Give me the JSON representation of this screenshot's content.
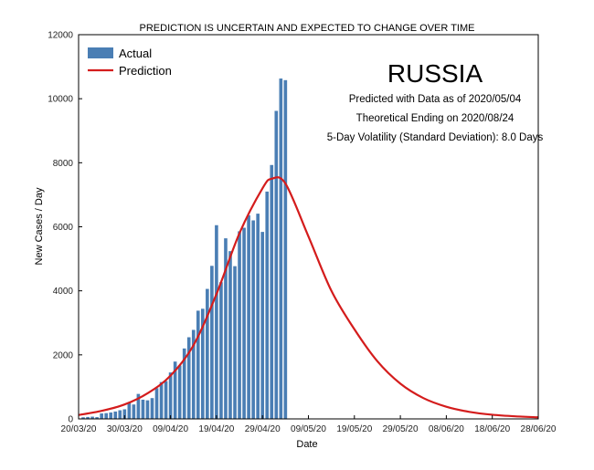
{
  "chart_data": {
    "type": "bar",
    "title": "PREDICTION IS UNCERTAIN AND EXPECTED TO CHANGE OVER TIME",
    "xlabel": "Date",
    "ylabel": "New Cases / Day",
    "ylim": [
      0,
      12000
    ],
    "yticks": [
      0,
      2000,
      4000,
      6000,
      8000,
      10000,
      12000
    ],
    "xticks": [
      "20/03/20",
      "30/03/20",
      "09/04/20",
      "19/04/20",
      "29/04/20",
      "09/05/20",
      "19/05/20",
      "29/05/20",
      "08/06/20",
      "18/06/20",
      "28/06/20"
    ],
    "x_start": "2020-03-20",
    "x_end": "2020-06-28",
    "annotations": {
      "country": "RUSSIA",
      "lines": [
        "Predicted with Data as of 2020/05/04",
        "Theoretical Ending on 2020/08/24",
        "5-Day Volatility (Standard Deviation): 8.0 Days"
      ]
    },
    "legend": {
      "placement": "top-left",
      "entries": [
        "Actual",
        "Prediction"
      ]
    },
    "colors": {
      "actual": "#4a7eb4",
      "prediction": "#d41c1c"
    },
    "series": [
      {
        "name": "Actual",
        "type": "bar",
        "dates": [
          "2020-03-21",
          "2020-03-22",
          "2020-03-23",
          "2020-03-24",
          "2020-03-25",
          "2020-03-26",
          "2020-03-27",
          "2020-03-28",
          "2020-03-29",
          "2020-03-30",
          "2020-03-31",
          "2020-04-01",
          "2020-04-02",
          "2020-04-03",
          "2020-04-04",
          "2020-04-05",
          "2020-04-06",
          "2020-04-07",
          "2020-04-08",
          "2020-04-09",
          "2020-04-10",
          "2020-04-11",
          "2020-04-12",
          "2020-04-13",
          "2020-04-14",
          "2020-04-15",
          "2020-04-16",
          "2020-04-17",
          "2020-04-18",
          "2020-04-19",
          "2020-04-20",
          "2020-04-21",
          "2020-04-22",
          "2020-04-23",
          "2020-04-24",
          "2020-04-25",
          "2020-04-26",
          "2020-04-27",
          "2020-04-28",
          "2020-04-29",
          "2020-04-30",
          "2020-05-01",
          "2020-05-02",
          "2020-05-03",
          "2020-05-04"
        ],
        "values": [
          50,
          60,
          70,
          55,
          170,
          180,
          200,
          230,
          270,
          300,
          500,
          450,
          780,
          600,
          580,
          650,
          960,
          1150,
          1180,
          1450,
          1790,
          1670,
          2200,
          2550,
          2780,
          3380,
          3440,
          4060,
          4780,
          6050,
          4270,
          5640,
          5240,
          4770,
          5860,
          5970,
          6360,
          6200,
          6410,
          5840,
          7100,
          7930,
          9620,
          10630,
          10580
        ]
      },
      {
        "name": "Prediction",
        "type": "line",
        "dates": [
          "2020-03-20",
          "2020-03-25",
          "2020-03-30",
          "2020-04-04",
          "2020-04-09",
          "2020-04-14",
          "2020-04-19",
          "2020-04-24",
          "2020-04-29",
          "2020-05-01",
          "2020-05-04",
          "2020-05-09",
          "2020-05-14",
          "2020-05-19",
          "2020-05-24",
          "2020-05-29",
          "2020-06-03",
          "2020-06-08",
          "2020-06-13",
          "2020-06-18",
          "2020-06-23",
          "2020-06-28"
        ],
        "values": [
          120,
          250,
          450,
          800,
          1350,
          2300,
          3900,
          5800,
          7200,
          7500,
          7350,
          5700,
          4000,
          2800,
          1800,
          1100,
          650,
          380,
          220,
          130,
          80,
          50
        ]
      }
    ]
  }
}
